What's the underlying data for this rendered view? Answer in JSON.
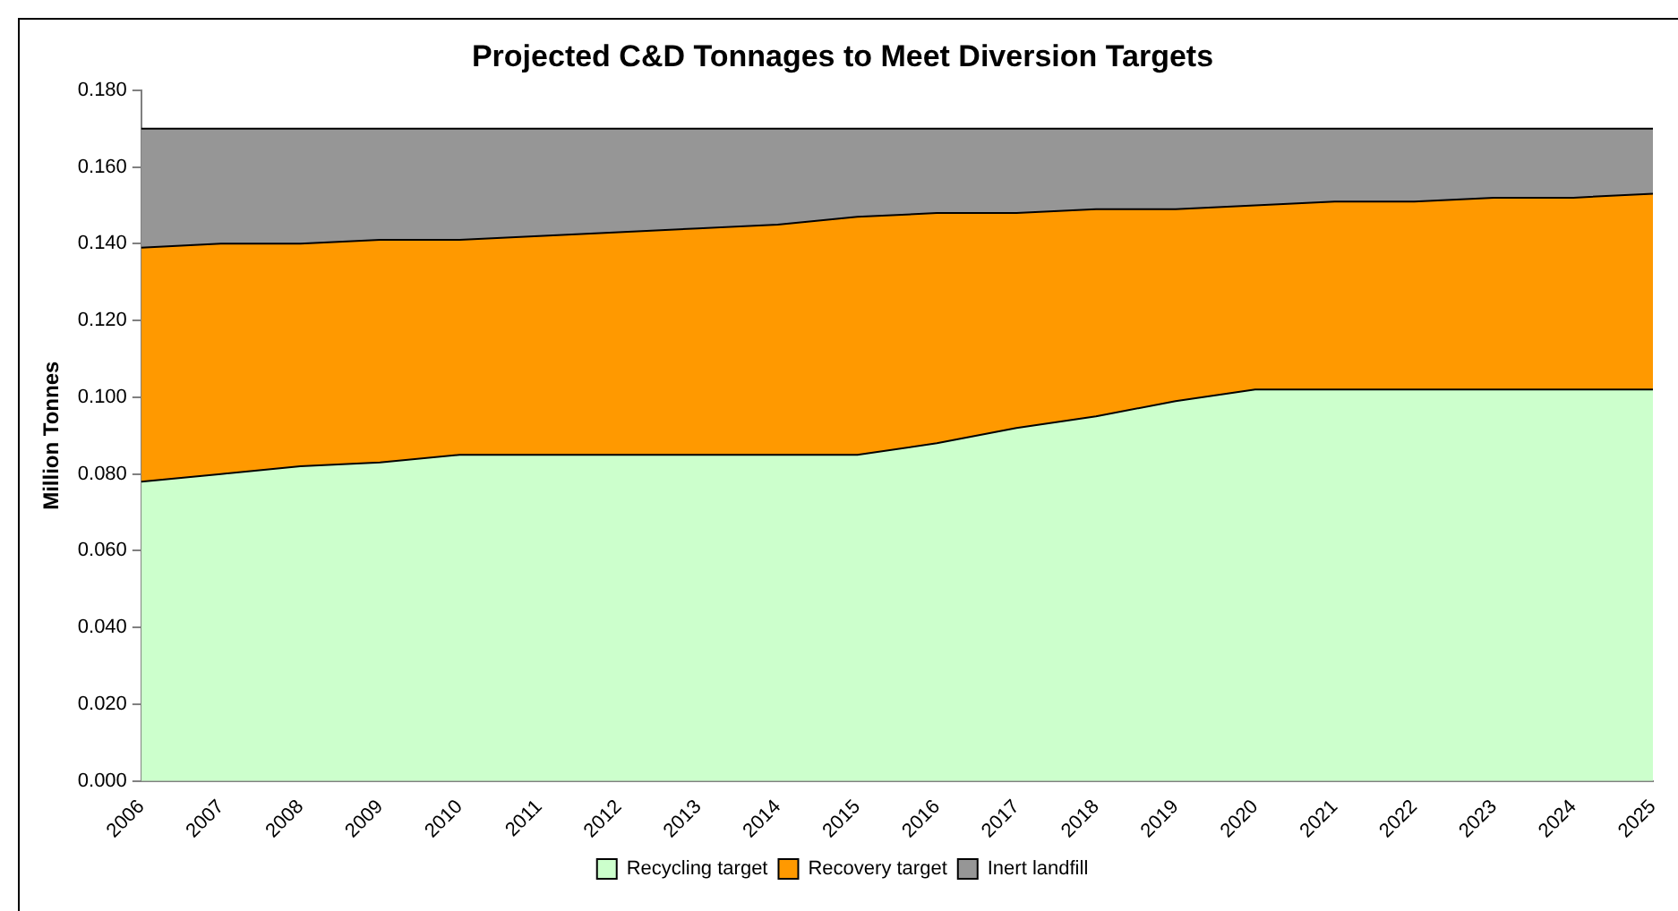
{
  "chart_data": {
    "type": "area",
    "title": "Projected C&D Tonnages to Meet Diversion Targets",
    "ylabel": "Million Tonnes",
    "categories": [
      "2006",
      "2007",
      "2008",
      "2009",
      "2010",
      "2011",
      "2012",
      "2013",
      "2014",
      "2015",
      "2016",
      "2017",
      "2018",
      "2019",
      "2020",
      "2021",
      "2022",
      "2023",
      "2024",
      "2025"
    ],
    "stacked": true,
    "series": [
      {
        "name": "Recycling target",
        "color": "#ccffcc",
        "values": [
          0.078,
          0.08,
          0.082,
          0.083,
          0.085,
          0.085,
          0.085,
          0.085,
          0.085,
          0.085,
          0.088,
          0.092,
          0.095,
          0.099,
          0.102,
          0.102,
          0.102,
          0.102,
          0.102,
          0.102
        ]
      },
      {
        "name": "Recovery target",
        "color": "#ff9900",
        "values": [
          0.061,
          0.06,
          0.058,
          0.058,
          0.056,
          0.057,
          0.058,
          0.059,
          0.06,
          0.062,
          0.06,
          0.056,
          0.054,
          0.05,
          0.048,
          0.049,
          0.049,
          0.05,
          0.05,
          0.051
        ]
      },
      {
        "name": "Inert landfill",
        "color": "#969696",
        "values": [
          0.031,
          0.03,
          0.03,
          0.029,
          0.029,
          0.028,
          0.027,
          0.026,
          0.025,
          0.023,
          0.022,
          0.022,
          0.021,
          0.021,
          0.02,
          0.019,
          0.019,
          0.018,
          0.018,
          0.017
        ]
      }
    ],
    "ylim": [
      0,
      0.18
    ],
    "yticks": [
      {
        "value": 0,
        "label": "0.000"
      },
      {
        "value": 0.02,
        "label": "0.020"
      },
      {
        "value": 0.04,
        "label": "0.040"
      },
      {
        "value": 0.06,
        "label": "0.060"
      },
      {
        "value": 0.08,
        "label": "0.080"
      },
      {
        "value": 0.1,
        "label": "0.100"
      },
      {
        "value": 0.12,
        "label": "0.120"
      },
      {
        "value": 0.14,
        "label": "0.140"
      },
      {
        "value": 0.16,
        "label": "0.160"
      },
      {
        "value": 0.18,
        "label": "0.180"
      }
    ],
    "grid": false,
    "legend": "bottom",
    "marker": "none"
  }
}
